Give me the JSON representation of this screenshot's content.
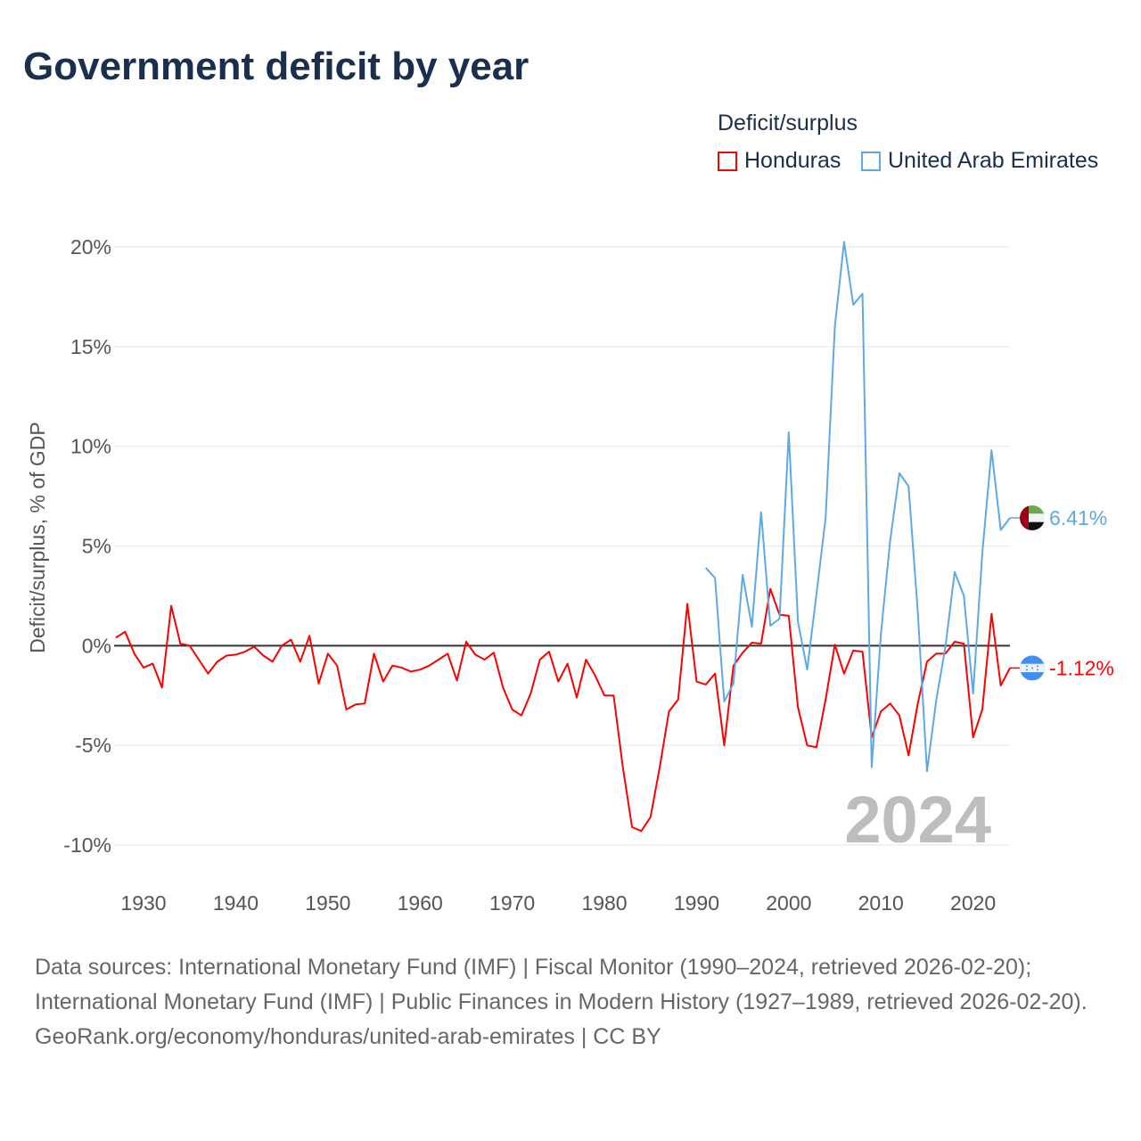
{
  "title": "Government deficit by year",
  "footer": {
    "sources": "Data sources: International Monetary Fund (IMF) | Fiscal Monitor (1990–2024, retrieved 2026-02-20); International Monetary Fund (IMF) | Public Finances in Modern History (1927–1989, retrieved 2026-02-20).",
    "link": "GeoRank.org/economy/honduras/united-arab-emirates | CC BY"
  },
  "chart_data": {
    "type": "line",
    "title": "Government deficit by year",
    "ylabel": "Deficit/surplus, % of GDP",
    "xlabel": "",
    "xlim": [
      1927,
      2024
    ],
    "ylim": [
      -10,
      20
    ],
    "yticks": [
      -10,
      -5,
      0,
      5,
      10,
      15,
      20
    ],
    "ytick_labels": [
      "-10%",
      "-5%",
      "0%",
      "5%",
      "10%",
      "15%",
      "20%"
    ],
    "xticks": [
      1930,
      1940,
      1950,
      1960,
      1970,
      1980,
      1990,
      2000,
      2010,
      2020
    ],
    "xtick_labels": [
      "1930",
      "1940",
      "1950",
      "1960",
      "1970",
      "1980",
      "1990",
      "2000",
      "2010",
      "2020"
    ],
    "grid": true,
    "legend_title": "Deficit/surplus",
    "legend_position": "top-right",
    "annotation_year": "2024",
    "series": [
      {
        "name": "Honduras",
        "color": "#ff0000",
        "start_year": 1927,
        "end_label": "-1.12%",
        "values": [
          0.4,
          0.7,
          -0.4,
          -1.1,
          -0.9,
          -2.1,
          2.0,
          0.1,
          0.0,
          -0.7,
          -1.4,
          -0.8,
          -0.5,
          -0.45,
          -0.3,
          -0.05,
          -0.5,
          -0.8,
          0.0,
          0.3,
          -0.8,
          0.5,
          -1.9,
          -0.4,
          -1.0,
          -3.2,
          -2.95,
          -2.9,
          -0.4,
          -1.8,
          -1.0,
          -1.1,
          -1.3,
          -1.2,
          -1.0,
          -0.7,
          -0.4,
          -1.75,
          0.2,
          -0.45,
          -0.7,
          -0.35,
          -2.1,
          -3.2,
          -3.5,
          -2.4,
          -0.7,
          -0.3,
          -1.8,
          -0.9,
          -2.6,
          -0.7,
          -1.5,
          -2.5,
          -2.5,
          -6.1,
          -9.1,
          -9.3,
          -8.6,
          -6.1,
          -3.3,
          -2.7,
          2.1,
          -1.8,
          -1.95,
          -1.4,
          -5.0,
          -1.0,
          -0.35,
          0.15,
          0.1,
          2.85,
          1.55,
          1.5,
          -3.1,
          -5.0,
          -5.1,
          -2.7,
          0.05,
          -1.4,
          -0.25,
          -0.3,
          -4.6,
          -3.3,
          -2.9,
          -3.5,
          -5.5,
          -2.9,
          -0.8,
          -0.4,
          -0.4,
          0.2,
          0.1,
          -4.6,
          -3.2,
          1.6,
          -2.0,
          -1.12
        ]
      },
      {
        "name": "United Arab Emirates",
        "color": "#5da8e8",
        "start_year": 1991,
        "end_label": "6.41%",
        "values": [
          3.9,
          3.4,
          -2.8,
          -1.9,
          3.55,
          0.95,
          6.7,
          1.0,
          1.35,
          10.7,
          1.2,
          -1.2,
          2.55,
          6.4,
          16.0,
          20.25,
          17.1,
          17.65,
          -6.1,
          0.6,
          5.25,
          8.65,
          8.0,
          1.7,
          -6.3,
          -2.75,
          -0.05,
          3.7,
          2.5,
          -2.4,
          4.65,
          9.8,
          5.8,
          6.41
        ]
      }
    ]
  }
}
